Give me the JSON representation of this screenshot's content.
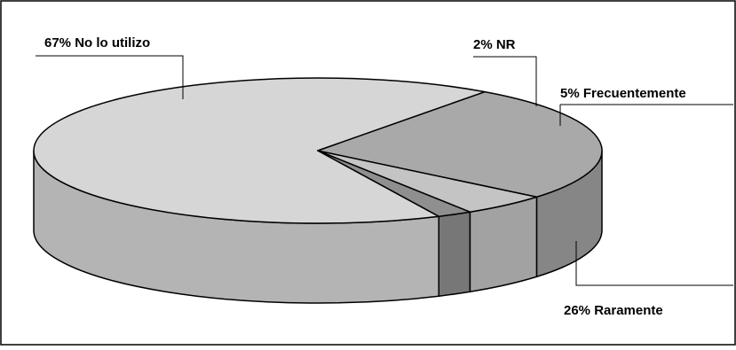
{
  "chart_data": {
    "type": "pie",
    "title": "",
    "style": "3d",
    "legend": "none",
    "slices": [
      {
        "label": "No lo utilizo",
        "value": 67,
        "display": "67% No lo utilizo",
        "color": "#d6d6d6"
      },
      {
        "label": "NR",
        "value": 2,
        "display": "2% NR",
        "color": "#8f8f8f"
      },
      {
        "label": "Frecuentemente",
        "value": 5,
        "display": "5% Frecuentemente",
        "color": "#c4c4c4"
      },
      {
        "label": "Raramente",
        "value": 26,
        "display": "26% Raramente",
        "color": "#a9a9a9"
      }
    ],
    "side_colors": [
      "#b4b4b4",
      "#777777",
      "#a2a2a2",
      "#868686"
    ],
    "border_color": "#000000"
  }
}
